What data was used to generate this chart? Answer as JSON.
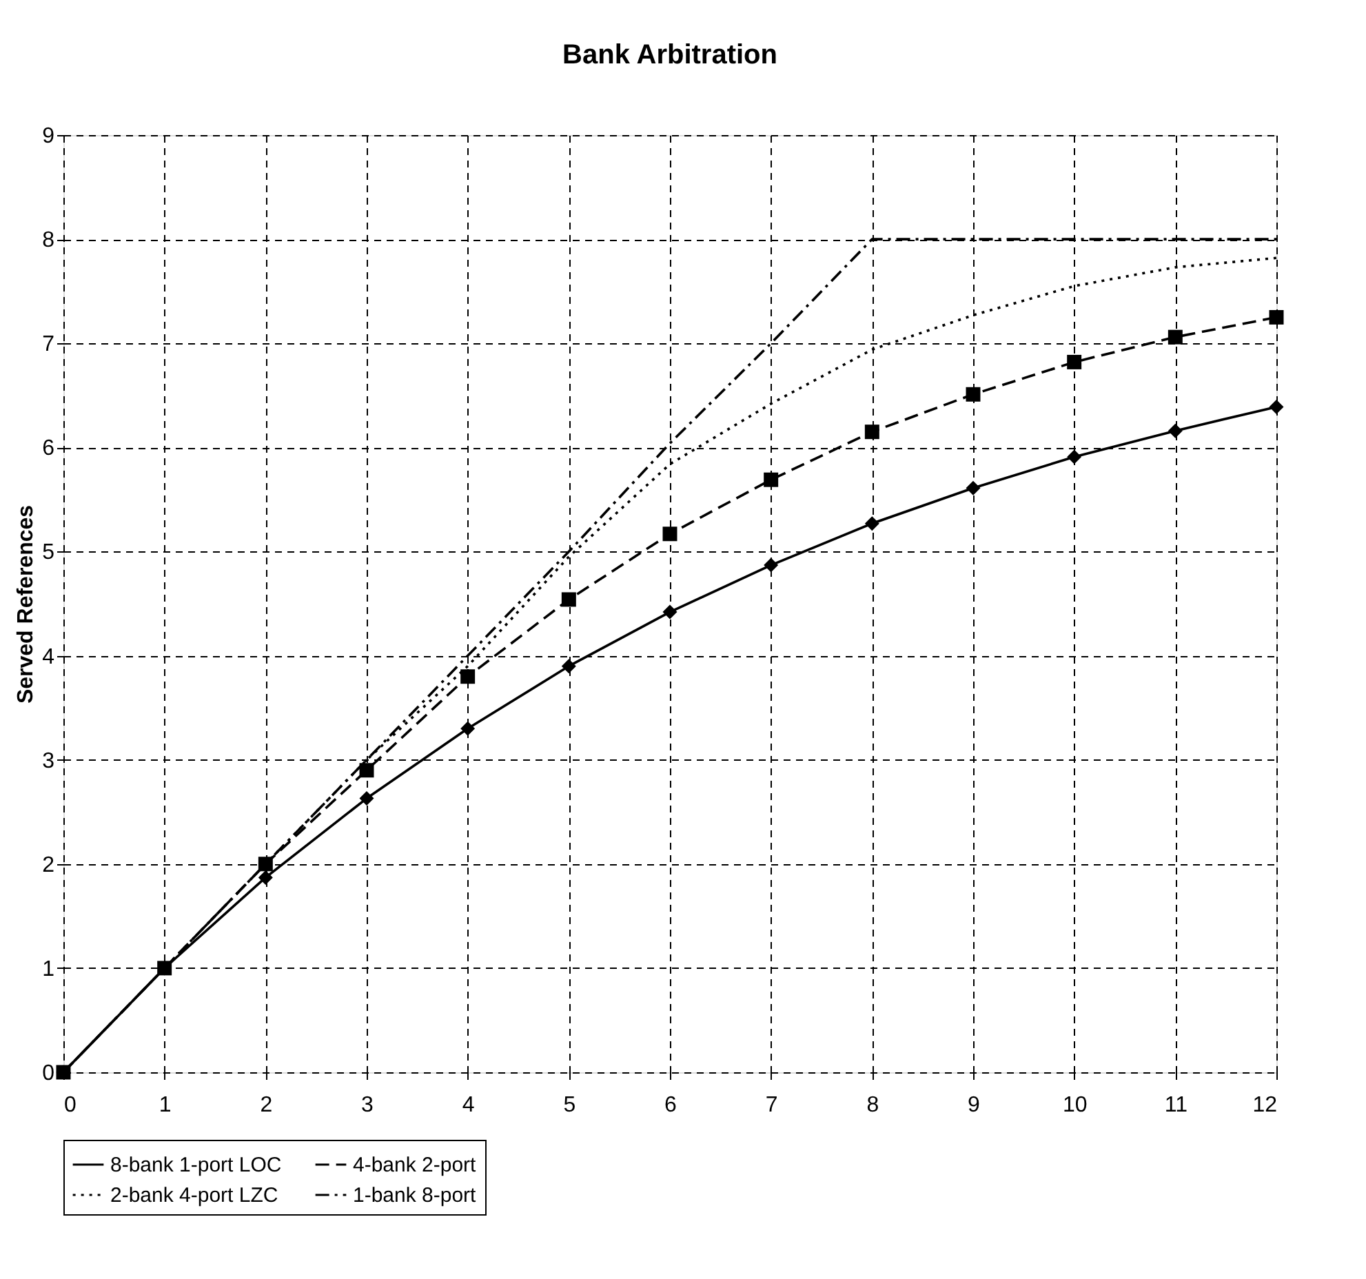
{
  "chart_data": {
    "type": "line",
    "title": "Bank Arbitration",
    "ylabel": "Served References",
    "x": [
      0,
      1,
      2,
      3,
      4,
      5,
      6,
      7,
      8,
      9,
      10,
      11,
      12
    ],
    "xlim": [
      0,
      12
    ],
    "xticks": [
      0,
      1,
      2,
      3,
      4,
      5,
      6,
      7,
      8,
      9,
      10,
      11,
      12
    ],
    "ylim": [
      0,
      9
    ],
    "yticks": [
      0,
      1,
      2,
      3,
      4,
      5,
      6,
      7,
      8,
      9
    ],
    "grid": true,
    "legend": "bottom",
    "series": [
      {
        "name": "8-bank 1-port LOC",
        "color": "#000000",
        "marker": "diamond",
        "line_style": "solid",
        "values": [
          0,
          1,
          1.87,
          2.63,
          3.3,
          3.9,
          4.42,
          4.87,
          5.27,
          5.61,
          5.91,
          6.16,
          6.39
        ]
      },
      {
        "name": "4-bank 2-port",
        "color": "#000000",
        "marker": "square",
        "line_style": "dashed",
        "values": [
          0,
          1,
          2,
          2.9,
          3.8,
          4.54,
          5.17,
          5.69,
          6.15,
          6.51,
          6.82,
          7.06,
          7.25
        ]
      },
      {
        "name": "2-bank 4-port LZC",
        "color": "#000000",
        "marker": "none",
        "line_style": "dotted",
        "values": [
          0,
          1,
          2,
          3,
          3.9,
          4.95,
          5.84,
          6.42,
          6.94,
          7.27,
          7.55,
          7.73,
          7.82
        ]
      },
      {
        "name": "1-bank 8-port",
        "color": "#000000",
        "marker": "none",
        "line_style": "dashdot",
        "values": [
          0,
          1,
          2,
          3,
          4,
          5,
          6.04,
          7,
          8,
          8,
          8,
          8,
          8
        ]
      }
    ]
  }
}
